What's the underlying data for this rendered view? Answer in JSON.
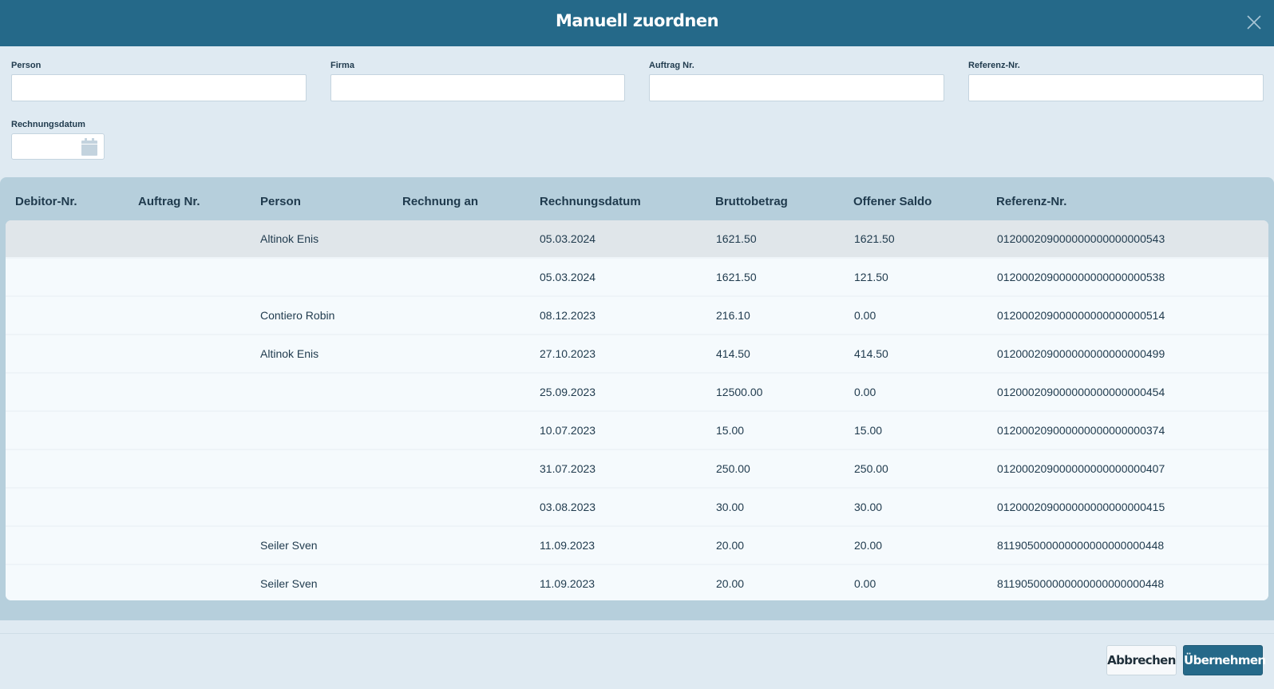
{
  "dialog": {
    "title": "Manuell zuordnen",
    "close_icon": "close-icon"
  },
  "filters": {
    "person": {
      "label": "Person",
      "value": ""
    },
    "firma": {
      "label": "Firma",
      "value": ""
    },
    "auftrag": {
      "label": "Auftrag Nr.",
      "value": ""
    },
    "referenz": {
      "label": "Referenz-Nr.",
      "value": ""
    },
    "rechnungsdatum": {
      "label": "Rechnungsdatum",
      "value": "",
      "icon": "calendar-icon"
    }
  },
  "table": {
    "columns": [
      "Debitor-Nr.",
      "Auftrag Nr.",
      "Person",
      "Rechnung an",
      "Rechnungsdatum",
      "Bruttobetrag",
      "Offener Saldo",
      "Referenz-Nr."
    ],
    "rows": [
      {
        "debitor": "",
        "auftrag": "",
        "person": "Altinok Enis",
        "rechnung_an": "",
        "datum": "05.03.2024",
        "brutto": "1621.50",
        "saldo": "1621.50",
        "referenz": "012000209000000000000000543",
        "selected": true
      },
      {
        "debitor": "",
        "auftrag": "",
        "person": "",
        "rechnung_an": "",
        "datum": "05.03.2024",
        "brutto": "1621.50",
        "saldo": "121.50",
        "referenz": "012000209000000000000000538"
      },
      {
        "debitor": "",
        "auftrag": "",
        "person": "Contiero Robin",
        "rechnung_an": "",
        "datum": "08.12.2023",
        "brutto": "216.10",
        "saldo": "0.00",
        "referenz": "012000209000000000000000514"
      },
      {
        "debitor": "",
        "auftrag": "",
        "person": "Altinok Enis",
        "rechnung_an": "",
        "datum": "27.10.2023",
        "brutto": "414.50",
        "saldo": "414.50",
        "referenz": "012000209000000000000000499"
      },
      {
        "debitor": "",
        "auftrag": "",
        "person": "",
        "rechnung_an": "",
        "datum": "25.09.2023",
        "brutto": "12500.00",
        "saldo": "0.00",
        "referenz": "012000209000000000000000454"
      },
      {
        "debitor": "",
        "auftrag": "",
        "person": "",
        "rechnung_an": "",
        "datum": "10.07.2023",
        "brutto": "15.00",
        "saldo": "15.00",
        "referenz": "012000209000000000000000374"
      },
      {
        "debitor": "",
        "auftrag": "",
        "person": "",
        "rechnung_an": "",
        "datum": "31.07.2023",
        "brutto": "250.00",
        "saldo": "250.00",
        "referenz": "012000209000000000000000407"
      },
      {
        "debitor": "",
        "auftrag": "",
        "person": "",
        "rechnung_an": "",
        "datum": "03.08.2023",
        "brutto": "30.00",
        "saldo": "30.00",
        "referenz": "012000209000000000000000415"
      },
      {
        "debitor": "",
        "auftrag": "",
        "person": "Seiler Sven",
        "rechnung_an": "",
        "datum": "11.09.2023",
        "brutto": "20.00",
        "saldo": "20.00",
        "referenz": "811905000000000000000000448"
      },
      {
        "debitor": "",
        "auftrag": "",
        "person": "Seiler Sven",
        "rechnung_an": "",
        "datum": "11.09.2023",
        "brutto": "20.00",
        "saldo": "0.00",
        "referenz": "811905000000000000000000448"
      }
    ]
  },
  "actions": {
    "cancel": "Abbrechen",
    "apply": "Übernehmen"
  },
  "colors": {
    "header": "#256989",
    "background": "#dfeaf2",
    "table_panel": "#b6cfdc",
    "selected_row": "#e0e6ea"
  }
}
